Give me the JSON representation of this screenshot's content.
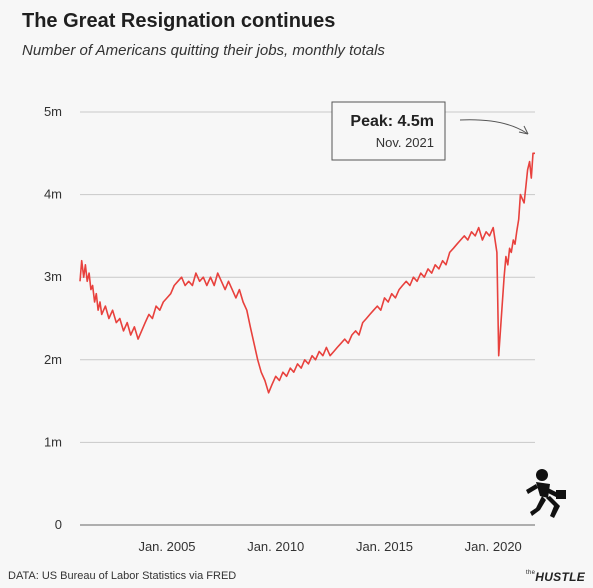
{
  "title": "The Great Resignation continues",
  "subtitle": "Number of Americans quitting their jobs, monthly totals",
  "source": "DATA: US Bureau of Labor Statistics via FRED",
  "brand": {
    "prefix": "the",
    "name": "HUSTLE"
  },
  "annotation": {
    "label": "Peak: 4.5m",
    "date": "Nov. 2021"
  },
  "colors": {
    "line": "#e8413d",
    "grid": "#c9c9c9",
    "text": "#333333"
  },
  "chart_data": {
    "type": "line",
    "title": "The Great Resignation continues",
    "subtitle": "Number of Americans quitting their jobs, monthly totals",
    "xlabel": "",
    "ylabel": "",
    "ylim": [
      0,
      5
    ],
    "xlim": [
      2001.0,
      2021.92
    ],
    "yticks": [
      {
        "value": 0,
        "label": "0"
      },
      {
        "value": 1,
        "label": "1m"
      },
      {
        "value": 2,
        "label": "2m"
      },
      {
        "value": 3,
        "label": "3m"
      },
      {
        "value": 4,
        "label": "4m"
      },
      {
        "value": 5,
        "label": "5m"
      }
    ],
    "xticks": [
      {
        "value": 2005.0,
        "label": "Jan. 2005"
      },
      {
        "value": 2010.0,
        "label": "Jan. 2010"
      },
      {
        "value": 2015.0,
        "label": "Jan. 2015"
      },
      {
        "value": 2020.0,
        "label": "Jan. 2020"
      }
    ],
    "grid": true,
    "series": [
      {
        "points": [
          [
            2001.0,
            2.95
          ],
          [
            2001.08,
            3.2
          ],
          [
            2001.17,
            3.0
          ],
          [
            2001.25,
            3.15
          ],
          [
            2001.33,
            2.95
          ],
          [
            2001.42,
            3.05
          ],
          [
            2001.5,
            2.85
          ],
          [
            2001.58,
            2.9
          ],
          [
            2001.67,
            2.7
          ],
          [
            2001.75,
            2.8
          ],
          [
            2001.83,
            2.6
          ],
          [
            2001.92,
            2.7
          ],
          [
            2002.0,
            2.55
          ],
          [
            2002.17,
            2.65
          ],
          [
            2002.33,
            2.5
          ],
          [
            2002.5,
            2.6
          ],
          [
            2002.67,
            2.45
          ],
          [
            2002.83,
            2.5
          ],
          [
            2003.0,
            2.35
          ],
          [
            2003.17,
            2.45
          ],
          [
            2003.33,
            2.3
          ],
          [
            2003.5,
            2.4
          ],
          [
            2003.67,
            2.25
          ],
          [
            2003.83,
            2.35
          ],
          [
            2004.0,
            2.45
          ],
          [
            2004.17,
            2.55
          ],
          [
            2004.33,
            2.5
          ],
          [
            2004.5,
            2.65
          ],
          [
            2004.67,
            2.6
          ],
          [
            2004.83,
            2.7
          ],
          [
            2005.0,
            2.75
          ],
          [
            2005.17,
            2.8
          ],
          [
            2005.33,
            2.9
          ],
          [
            2005.5,
            2.95
          ],
          [
            2005.67,
            3.0
          ],
          [
            2005.83,
            2.9
          ],
          [
            2006.0,
            2.95
          ],
          [
            2006.17,
            2.9
          ],
          [
            2006.33,
            3.05
          ],
          [
            2006.5,
            2.95
          ],
          [
            2006.67,
            3.0
          ],
          [
            2006.83,
            2.9
          ],
          [
            2007.0,
            3.0
          ],
          [
            2007.17,
            2.9
          ],
          [
            2007.33,
            3.05
          ],
          [
            2007.5,
            2.95
          ],
          [
            2007.67,
            2.85
          ],
          [
            2007.83,
            2.95
          ],
          [
            2008.0,
            2.85
          ],
          [
            2008.17,
            2.75
          ],
          [
            2008.33,
            2.85
          ],
          [
            2008.5,
            2.7
          ],
          [
            2008.67,
            2.6
          ],
          [
            2008.83,
            2.4
          ],
          [
            2009.0,
            2.2
          ],
          [
            2009.17,
            2.0
          ],
          [
            2009.33,
            1.85
          ],
          [
            2009.5,
            1.75
          ],
          [
            2009.67,
            1.6
          ],
          [
            2009.83,
            1.7
          ],
          [
            2010.0,
            1.8
          ],
          [
            2010.17,
            1.75
          ],
          [
            2010.33,
            1.85
          ],
          [
            2010.5,
            1.8
          ],
          [
            2010.67,
            1.9
          ],
          [
            2010.83,
            1.85
          ],
          [
            2011.0,
            1.95
          ],
          [
            2011.17,
            1.9
          ],
          [
            2011.33,
            2.0
          ],
          [
            2011.5,
            1.95
          ],
          [
            2011.67,
            2.05
          ],
          [
            2011.83,
            2.0
          ],
          [
            2012.0,
            2.1
          ],
          [
            2012.17,
            2.05
          ],
          [
            2012.33,
            2.15
          ],
          [
            2012.5,
            2.05
          ],
          [
            2012.67,
            2.1
          ],
          [
            2012.83,
            2.15
          ],
          [
            2013.0,
            2.2
          ],
          [
            2013.17,
            2.25
          ],
          [
            2013.33,
            2.2
          ],
          [
            2013.5,
            2.3
          ],
          [
            2013.67,
            2.35
          ],
          [
            2013.83,
            2.3
          ],
          [
            2014.0,
            2.45
          ],
          [
            2014.17,
            2.5
          ],
          [
            2014.33,
            2.55
          ],
          [
            2014.5,
            2.6
          ],
          [
            2014.67,
            2.65
          ],
          [
            2014.83,
            2.6
          ],
          [
            2015.0,
            2.75
          ],
          [
            2015.17,
            2.7
          ],
          [
            2015.33,
            2.8
          ],
          [
            2015.5,
            2.75
          ],
          [
            2015.67,
            2.85
          ],
          [
            2015.83,
            2.9
          ],
          [
            2016.0,
            2.95
          ],
          [
            2016.17,
            2.9
          ],
          [
            2016.33,
            3.0
          ],
          [
            2016.5,
            2.95
          ],
          [
            2016.67,
            3.05
          ],
          [
            2016.83,
            3.0
          ],
          [
            2017.0,
            3.1
          ],
          [
            2017.17,
            3.05
          ],
          [
            2017.33,
            3.15
          ],
          [
            2017.5,
            3.1
          ],
          [
            2017.67,
            3.2
          ],
          [
            2017.83,
            3.15
          ],
          [
            2018.0,
            3.3
          ],
          [
            2018.17,
            3.35
          ],
          [
            2018.33,
            3.4
          ],
          [
            2018.5,
            3.45
          ],
          [
            2018.67,
            3.5
          ],
          [
            2018.83,
            3.45
          ],
          [
            2019.0,
            3.55
          ],
          [
            2019.17,
            3.5
          ],
          [
            2019.33,
            3.6
          ],
          [
            2019.5,
            3.45
          ],
          [
            2019.67,
            3.55
          ],
          [
            2019.83,
            3.5
          ],
          [
            2020.0,
            3.6
          ],
          [
            2020.17,
            3.3
          ],
          [
            2020.25,
            2.05
          ],
          [
            2020.33,
            2.35
          ],
          [
            2020.5,
            3.0
          ],
          [
            2020.58,
            3.25
          ],
          [
            2020.67,
            3.15
          ],
          [
            2020.75,
            3.35
          ],
          [
            2020.83,
            3.3
          ],
          [
            2020.92,
            3.45
          ],
          [
            2021.0,
            3.4
          ],
          [
            2021.08,
            3.55
          ],
          [
            2021.17,
            3.7
          ],
          [
            2021.25,
            4.0
          ],
          [
            2021.33,
            3.95
          ],
          [
            2021.42,
            3.9
          ],
          [
            2021.5,
            4.1
          ],
          [
            2021.58,
            4.3
          ],
          [
            2021.67,
            4.4
          ],
          [
            2021.75,
            4.2
          ],
          [
            2021.83,
            4.5
          ],
          [
            2021.92,
            4.5
          ]
        ]
      }
    ]
  }
}
